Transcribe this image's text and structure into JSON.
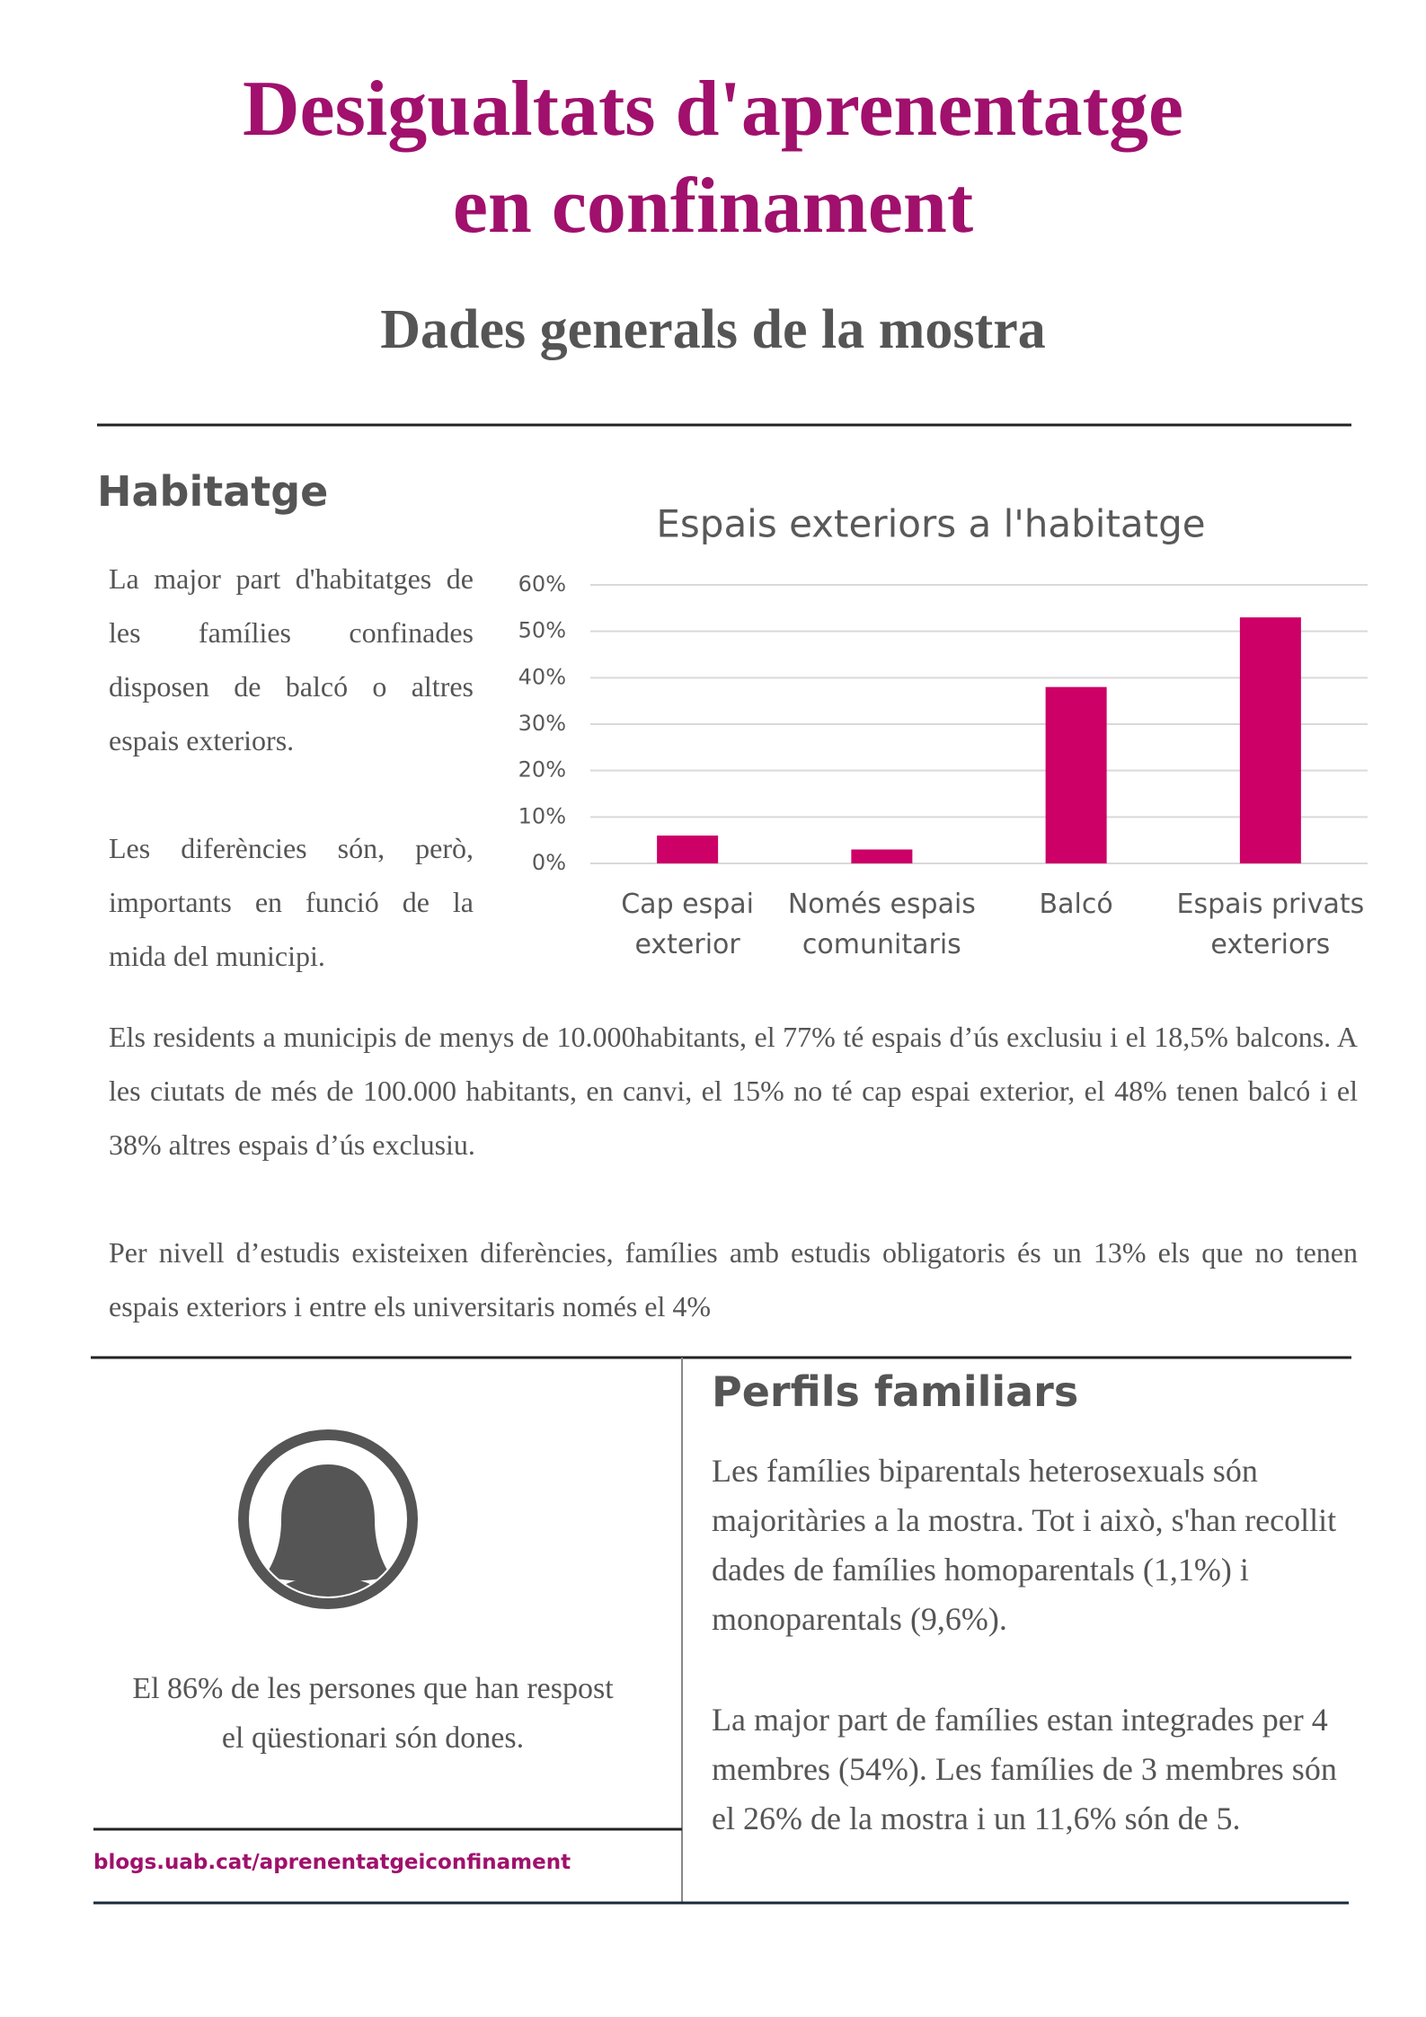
{
  "header": {
    "title_line1": "Desigualtats d'aprenentatge",
    "title_line2": "en confinament",
    "subtitle": "Dades generals de la mostra"
  },
  "habitatge": {
    "heading": "Habitatge",
    "paragraphs": [
      "La major part d'habitatges de les famílies confinades disposen de balcó o altres espais exteriors.",
      "Les diferències són, però, importants en funció de la mida del municipi.",
      "Els residents a municipis de menys de 10.000habitants, el 77% té espais d’ús exclusiu i el 18,5% balcons. A les ciutats de més de 100.000 habitants, en canvi, el 15% no té cap espai exterior, el 48% tenen balcó i el 38% altres espais d’ús exclusiu.",
      "Per nivell d’estudis existeixen diferències, famílies amb estudis obligatoris és un 13% els que no tenen espais exteriors i entre els universitaris només el 4%"
    ]
  },
  "chart_data": {
    "type": "bar",
    "title": "Espais exteriors a l'habitatge",
    "categories": [
      "Cap espai exterior",
      "Només espais comunitaris",
      "Balcó",
      "Espais privats exteriors"
    ],
    "values": [
      6,
      3,
      38,
      53
    ],
    "color": "#cc0066",
    "ylim": [
      0,
      60
    ],
    "yticks": [
      {
        "value": 0,
        "label": "0%"
      },
      {
        "value": 10,
        "label": "10%"
      },
      {
        "value": 20,
        "label": "20%"
      },
      {
        "value": 30,
        "label": "30%"
      },
      {
        "value": 40,
        "label": "40%"
      },
      {
        "value": 50,
        "label": "50%"
      },
      {
        "value": 60,
        "label": "60%"
      }
    ],
    "grid": true
  },
  "dones": {
    "caption": "El 86% de les persones que han respost el qüestionari són dones."
  },
  "perfils": {
    "heading": "Perfils familiars",
    "paragraphs": [
      "Les famílies biparentals heterosexuals són majoritàries a la mostra. Tot i això, s'han recollit dades de famílies homoparentals (1,1%) i monoparentals (9,6%).",
      "La major part de famílies estan integrades per 4 membres (54%). Les famílies de 3 membres són el 26% de la mostra i un 11,6% són de 5."
    ]
  },
  "footer": {
    "link": "blogs.uab.cat/aprenentatgeiconfinament"
  }
}
